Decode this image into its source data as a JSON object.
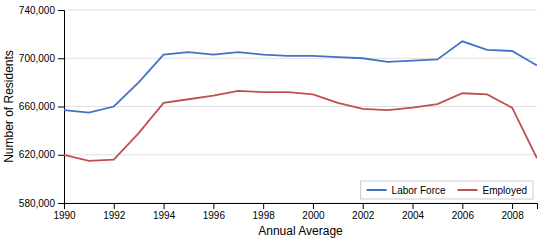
{
  "chart_data": {
    "type": "line",
    "x": [
      1990,
      1991,
      1992,
      1993,
      1994,
      1995,
      1996,
      1997,
      1998,
      1999,
      2000,
      2001,
      2002,
      2003,
      2004,
      2005,
      2006,
      2007,
      2008,
      2009
    ],
    "series": [
      {
        "name": "Labor Force",
        "color": "#4472C4",
        "values": [
          657000,
          655000,
          660000,
          680000,
          703000,
          705000,
          703000,
          705000,
          703000,
          702000,
          702000,
          701000,
          700000,
          697000,
          698000,
          699000,
          714000,
          707000,
          706000,
          694000
        ]
      },
      {
        "name": "Employed",
        "color": "#C0504D",
        "values": [
          620000,
          615000,
          616000,
          638000,
          663000,
          666000,
          669000,
          673000,
          672000,
          672000,
          670000,
          663000,
          658000,
          657000,
          659000,
          662000,
          671000,
          670000,
          659000,
          617000
        ]
      }
    ],
    "xlabel": "Annual Average",
    "ylabel": "Number of Residents",
    "xlim": [
      1990,
      2009
    ],
    "ylim": [
      580000,
      740000
    ],
    "xticks": [
      1990,
      1992,
      1994,
      1996,
      1998,
      2000,
      2002,
      2004,
      2006,
      2008
    ],
    "yticks": [
      {
        "value": 580000,
        "label": "580,000"
      },
      {
        "value": 620000,
        "label": "620,000"
      },
      {
        "value": 660000,
        "label": "660,000"
      },
      {
        "value": 700000,
        "label": "700,000"
      },
      {
        "value": 740000,
        "label": "740,000"
      }
    ],
    "grid": true,
    "legend": "lower right"
  }
}
